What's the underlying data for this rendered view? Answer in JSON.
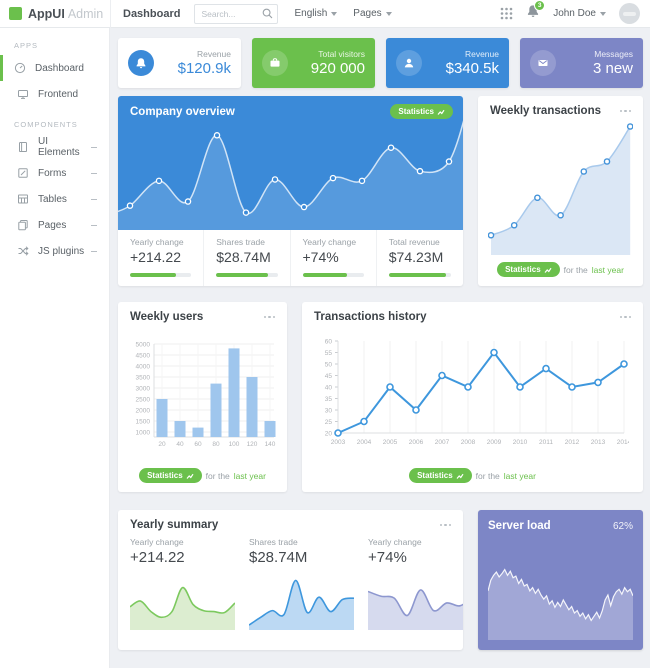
{
  "brand": {
    "name": "AppUI",
    "suffix": "Admin"
  },
  "topbar": {
    "page_title": "Dashboard",
    "search_placeholder": "Search...",
    "language_menu": "English",
    "pages_menu": "Pages",
    "notification_count": "3",
    "user_name": "John Doe"
  },
  "sidebar": {
    "sections": [
      {
        "title": "APPS",
        "items": [
          {
            "label": "Dashboard"
          },
          {
            "label": "Frontend"
          }
        ]
      },
      {
        "title": "COMPONENTS",
        "items": [
          {
            "label": "UI Elements"
          },
          {
            "label": "Forms"
          },
          {
            "label": "Tables"
          },
          {
            "label": "Pages"
          },
          {
            "label": "JS plugins"
          }
        ]
      }
    ]
  },
  "colors": {
    "green": "#6bc04c",
    "blue": "#3b8ad8",
    "purple": "#7d86c6",
    "line_blue": "#3e97dd",
    "bar_blue": "#9fc6ed"
  },
  "stat_cards": [
    {
      "label": "Revenue",
      "value": "$120.9k",
      "icon": "bell-icon"
    },
    {
      "label": "Total visitors",
      "value": "920 000",
      "icon": "briefcase-icon"
    },
    {
      "label": "Revenue",
      "value": "$340.5k",
      "icon": "user-icon"
    },
    {
      "label": "Messages",
      "value": "3 new",
      "icon": "envelope-icon"
    }
  ],
  "company_overview": {
    "title": "Company overview",
    "badge": "Statistics",
    "stats": [
      {
        "label": "Yearly change",
        "value": "+214.22",
        "progress": 75
      },
      {
        "label": "Shares trade",
        "value": "$28.74M",
        "progress": 85
      },
      {
        "label": "Yearly change",
        "value": "+74%",
        "progress": 72
      },
      {
        "label": "Total revenue",
        "value": "$74.23M",
        "progress": 92
      }
    ],
    "chart_data": {
      "type": "area",
      "values": [
        14,
        32,
        17,
        65,
        9,
        33,
        13,
        34,
        32,
        56,
        39,
        46
      ]
    }
  },
  "weekly_transactions": {
    "title": "Weekly transactions",
    "badge": "Statistics",
    "footer_text": "for the",
    "footer_link": "last year",
    "chart_data": {
      "type": "area",
      "values": [
        11,
        19,
        41,
        27,
        62,
        70,
        98
      ]
    }
  },
  "weekly_users": {
    "title": "Weekly users",
    "badge": "Statistics",
    "footer_text": "for the",
    "footer_link": "last year",
    "chart_data": {
      "type": "bar",
      "categories": [
        "20",
        "40",
        "60",
        "80",
        "100",
        "120",
        "140"
      ],
      "values": [
        2500,
        1500,
        1200,
        3200,
        4800,
        3500,
        1500
      ],
      "yticks": [
        1000,
        1500,
        2000,
        2500,
        3000,
        3500,
        4000,
        4500,
        5000
      ],
      "ylim": [
        1000,
        5000
      ]
    }
  },
  "transactions_history": {
    "title": "Transactions history",
    "badge": "Statistics",
    "footer_text": "for the",
    "footer_link": "last year",
    "chart_data": {
      "type": "line",
      "categories": [
        "2003",
        "2004",
        "2005",
        "2006",
        "2007",
        "2008",
        "2009",
        "2010",
        "2011",
        "2012",
        "2013",
        "2014"
      ],
      "values": [
        20,
        25,
        40,
        30,
        45,
        40,
        55,
        40,
        48,
        40,
        42,
        50
      ],
      "yticks": [
        20,
        25,
        30,
        35,
        40,
        45,
        50,
        55,
        60
      ],
      "ylim": [
        20,
        60
      ]
    }
  },
  "yearly_summary": {
    "title": "Yearly summary",
    "items": [
      {
        "label": "Yearly change",
        "value": "+214.22",
        "color": "#7cc95e",
        "fill": "#dcedd0",
        "spark": [
          40,
          52,
          30,
          18,
          30,
          80,
          45,
          32,
          30,
          28,
          48
        ]
      },
      {
        "label": "Shares trade",
        "value": "$28.74M",
        "color": "#3e97dd",
        "fill": "#bcd9f3",
        "spark": [
          2,
          18,
          32,
          24,
          95,
          28,
          60,
          30,
          55,
          58
        ]
      },
      {
        "label": "Yearly change",
        "value": "+74%",
        "color": "#8d97cf",
        "fill": "#d6daee",
        "spark": [
          72,
          62,
          58,
          22,
          75,
          32,
          48,
          42,
          60
        ]
      }
    ]
  },
  "server_load": {
    "title": "Server load",
    "value": "62%",
    "chart_data": {
      "type": "area",
      "values": [
        55,
        68,
        74,
        78,
        72,
        76,
        81,
        74,
        79,
        71,
        73,
        64,
        69,
        61,
        63,
        55,
        59,
        52,
        57,
        50,
        45,
        49,
        39,
        43,
        35,
        41,
        36,
        44,
        38,
        32,
        36,
        28,
        31,
        24,
        28,
        21,
        26,
        19,
        24,
        29,
        22,
        31,
        44,
        50,
        37,
        48,
        54,
        57,
        51,
        59,
        54,
        57,
        49
      ]
    }
  }
}
